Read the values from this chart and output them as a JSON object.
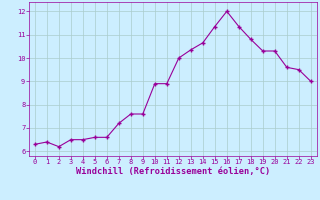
{
  "x": [
    0,
    1,
    2,
    3,
    4,
    5,
    6,
    7,
    8,
    9,
    10,
    11,
    12,
    13,
    14,
    15,
    16,
    17,
    18,
    19,
    20,
    21,
    22,
    23
  ],
  "y": [
    6.3,
    6.4,
    6.2,
    6.5,
    6.5,
    6.6,
    6.6,
    7.2,
    7.6,
    7.6,
    8.9,
    8.9,
    10.0,
    10.35,
    10.65,
    11.35,
    12.0,
    11.35,
    10.8,
    10.3,
    10.3,
    9.6,
    9.5,
    9.0
  ],
  "line_color": "#990099",
  "marker": "+",
  "marker_size": 3,
  "marker_lw": 1.0,
  "bg_color": "#cceeff",
  "grid_color": "#aacccc",
  "xlabel": "Windchill (Refroidissement éolien,°C)",
  "xlim": [
    -0.5,
    23.5
  ],
  "ylim": [
    5.8,
    12.4
  ],
  "yticks": [
    6,
    7,
    8,
    9,
    10,
    11,
    12
  ],
  "xticks": [
    0,
    1,
    2,
    3,
    4,
    5,
    6,
    7,
    8,
    9,
    10,
    11,
    12,
    13,
    14,
    15,
    16,
    17,
    18,
    19,
    20,
    21,
    22,
    23
  ],
  "tick_color": "#990099",
  "label_color": "#990099",
  "tick_fontsize": 5.0,
  "xlabel_fontsize": 6.2,
  "linewidth": 0.8
}
